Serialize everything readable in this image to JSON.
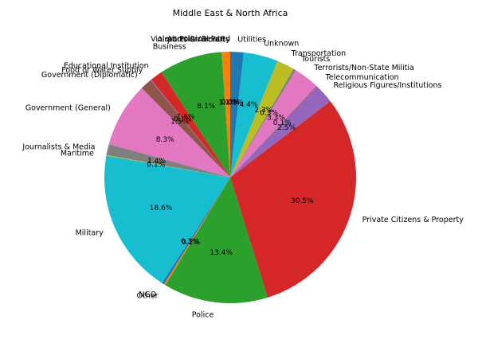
{
  "chart_data": {
    "type": "pie",
    "title": "Middle East & North Africa",
    "start_angle_deg": 90,
    "direction": "counterclockwise",
    "slices": [
      {
        "label": "Airports & Aircraft",
        "value": 1.1,
        "pct_label": "1.1%",
        "color": "#ff7f0e"
      },
      {
        "label": "Business",
        "value": 8.1,
        "pct_label": "8.1%",
        "color": "#2ca02c"
      },
      {
        "label": "Educational Institution",
        "value": 1.6,
        "pct_label": "1.6%",
        "color": "#d62728"
      },
      {
        "label": "Food or Water Supply",
        "value": 0.1,
        "pct_label": "0.1%",
        "color": "#9467bd"
      },
      {
        "label": "Government (Diplomatic)",
        "value": 1.5,
        "pct_label": "1.5%",
        "color": "#8c564b"
      },
      {
        "label": "Government (General)",
        "value": 8.3,
        "pct_label": "8.3%",
        "color": "#e377c2"
      },
      {
        "label": "Journalists & Media",
        "value": 1.4,
        "pct_label": "1.4%",
        "color": "#7f7f7f"
      },
      {
        "label": "Maritime",
        "value": 0.1,
        "pct_label": "0.1%",
        "color": "#bcbd22"
      },
      {
        "label": "Military",
        "value": 18.6,
        "pct_label": "18.6%",
        "color": "#17becf"
      },
      {
        "label": "NGO",
        "value": 0.3,
        "pct_label": "0.3%",
        "color": "#1f77b4"
      },
      {
        "label": "Other",
        "value": 0.2,
        "pct_label": "0.2%",
        "color": "#ff7f0e"
      },
      {
        "label": "Police",
        "value": 13.4,
        "pct_label": "13.4%",
        "color": "#2ca02c"
      },
      {
        "label": "Private Citizens & Property",
        "value": 30.5,
        "pct_label": "30.5%",
        "color": "#d62728"
      },
      {
        "label": "Religious Figures/Institutions",
        "value": 2.5,
        "pct_label": "2.5%",
        "color": "#9467bd"
      },
      {
        "label": "Telecommunication",
        "value": 0.1,
        "pct_label": "0.1%",
        "color": "#8c564b"
      },
      {
        "label": "Terrorists/Non-State Militia",
        "value": 3.3,
        "pct_label": "3.3%",
        "color": "#e377c2"
      },
      {
        "label": "Tourists",
        "value": 0.3,
        "pct_label": "0.3%",
        "color": "#7f7f7f"
      },
      {
        "label": "Transportation",
        "value": 2.3,
        "pct_label": "2.3%",
        "color": "#bcbd22"
      },
      {
        "label": "Unknown",
        "value": 4.4,
        "pct_label": "4.4%",
        "color": "#17becf"
      },
      {
        "label": "Utilities",
        "value": 1.7,
        "pct_label": "1.7%",
        "color": "#1f77b4"
      },
      {
        "label": "Violent Political Party",
        "value": 0.0,
        "pct_label": "0.0%",
        "color": "#ff7f0e"
      },
      {
        "label": "Abortion Related",
        "value": 0.0,
        "pct_label": "0.0%",
        "color": "#2ca02c"
      }
    ]
  }
}
